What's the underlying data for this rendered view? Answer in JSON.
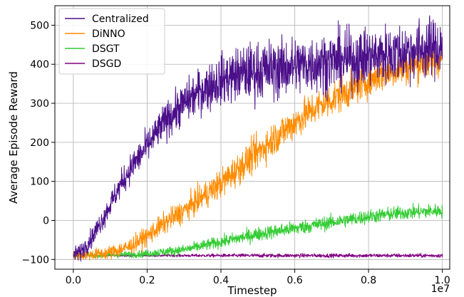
{
  "chart_data": {
    "type": "line",
    "title": "",
    "xlabel": "Timestep",
    "ylabel": "Average Episode Reward",
    "x_offset_label": "1e7",
    "xlim": [
      -0.05,
      1.02
    ],
    "ylim": [
      -125,
      550
    ],
    "x_ticks": [
      0.0,
      0.2,
      0.4,
      0.6,
      0.8,
      1.0
    ],
    "x_tick_labels": [
      "0.0",
      "0.2",
      "0.4",
      "0.6",
      "0.8",
      "1.0"
    ],
    "y_ticks": [
      -100,
      0,
      100,
      200,
      300,
      400,
      500
    ],
    "y_tick_labels": [
      "−100",
      "0",
      "100",
      "200",
      "300",
      "400",
      "500"
    ],
    "grid": true,
    "legend_position": "top-left",
    "series": [
      {
        "name": "Centralized",
        "color": "#4b0f8a",
        "noise": 38,
        "x": [
          0.0,
          0.02,
          0.05,
          0.08,
          0.1,
          0.13,
          0.16,
          0.2,
          0.25,
          0.3,
          0.35,
          0.4,
          0.45,
          0.5,
          0.55,
          0.6,
          0.65,
          0.7,
          0.75,
          0.8,
          0.85,
          0.9,
          0.95,
          1.0
        ],
        "y": [
          -88,
          -80,
          -45,
          5,
          40,
          95,
          140,
          190,
          255,
          300,
          335,
          360,
          375,
          383,
          388,
          395,
          402,
          408,
          412,
          418,
          425,
          432,
          440,
          445
        ]
      },
      {
        "name": "DiNNO",
        "color": "#ff8c00",
        "noise": 22,
        "x": [
          0.0,
          0.05,
          0.1,
          0.15,
          0.2,
          0.25,
          0.3,
          0.35,
          0.4,
          0.45,
          0.5,
          0.55,
          0.6,
          0.65,
          0.7,
          0.75,
          0.8,
          0.85,
          0.9,
          0.95,
          1.0
        ],
        "y": [
          -90,
          -88,
          -82,
          -68,
          -40,
          -5,
          25,
          60,
          95,
          135,
          175,
          215,
          250,
          285,
          310,
          335,
          360,
          380,
          392,
          405,
          415
        ]
      },
      {
        "name": "DSGT",
        "color": "#33cc33",
        "noise": 9,
        "x": [
          0.0,
          0.1,
          0.2,
          0.3,
          0.4,
          0.5,
          0.6,
          0.7,
          0.8,
          0.9,
          1.0
        ],
        "y": [
          -90,
          -89,
          -85,
          -75,
          -55,
          -35,
          -20,
          -5,
          10,
          20,
          25
        ]
      },
      {
        "name": "DSGD",
        "color": "#800080",
        "noise": 2.5,
        "x": [
          0.0,
          1.0
        ],
        "y": [
          -90,
          -90
        ]
      }
    ]
  }
}
